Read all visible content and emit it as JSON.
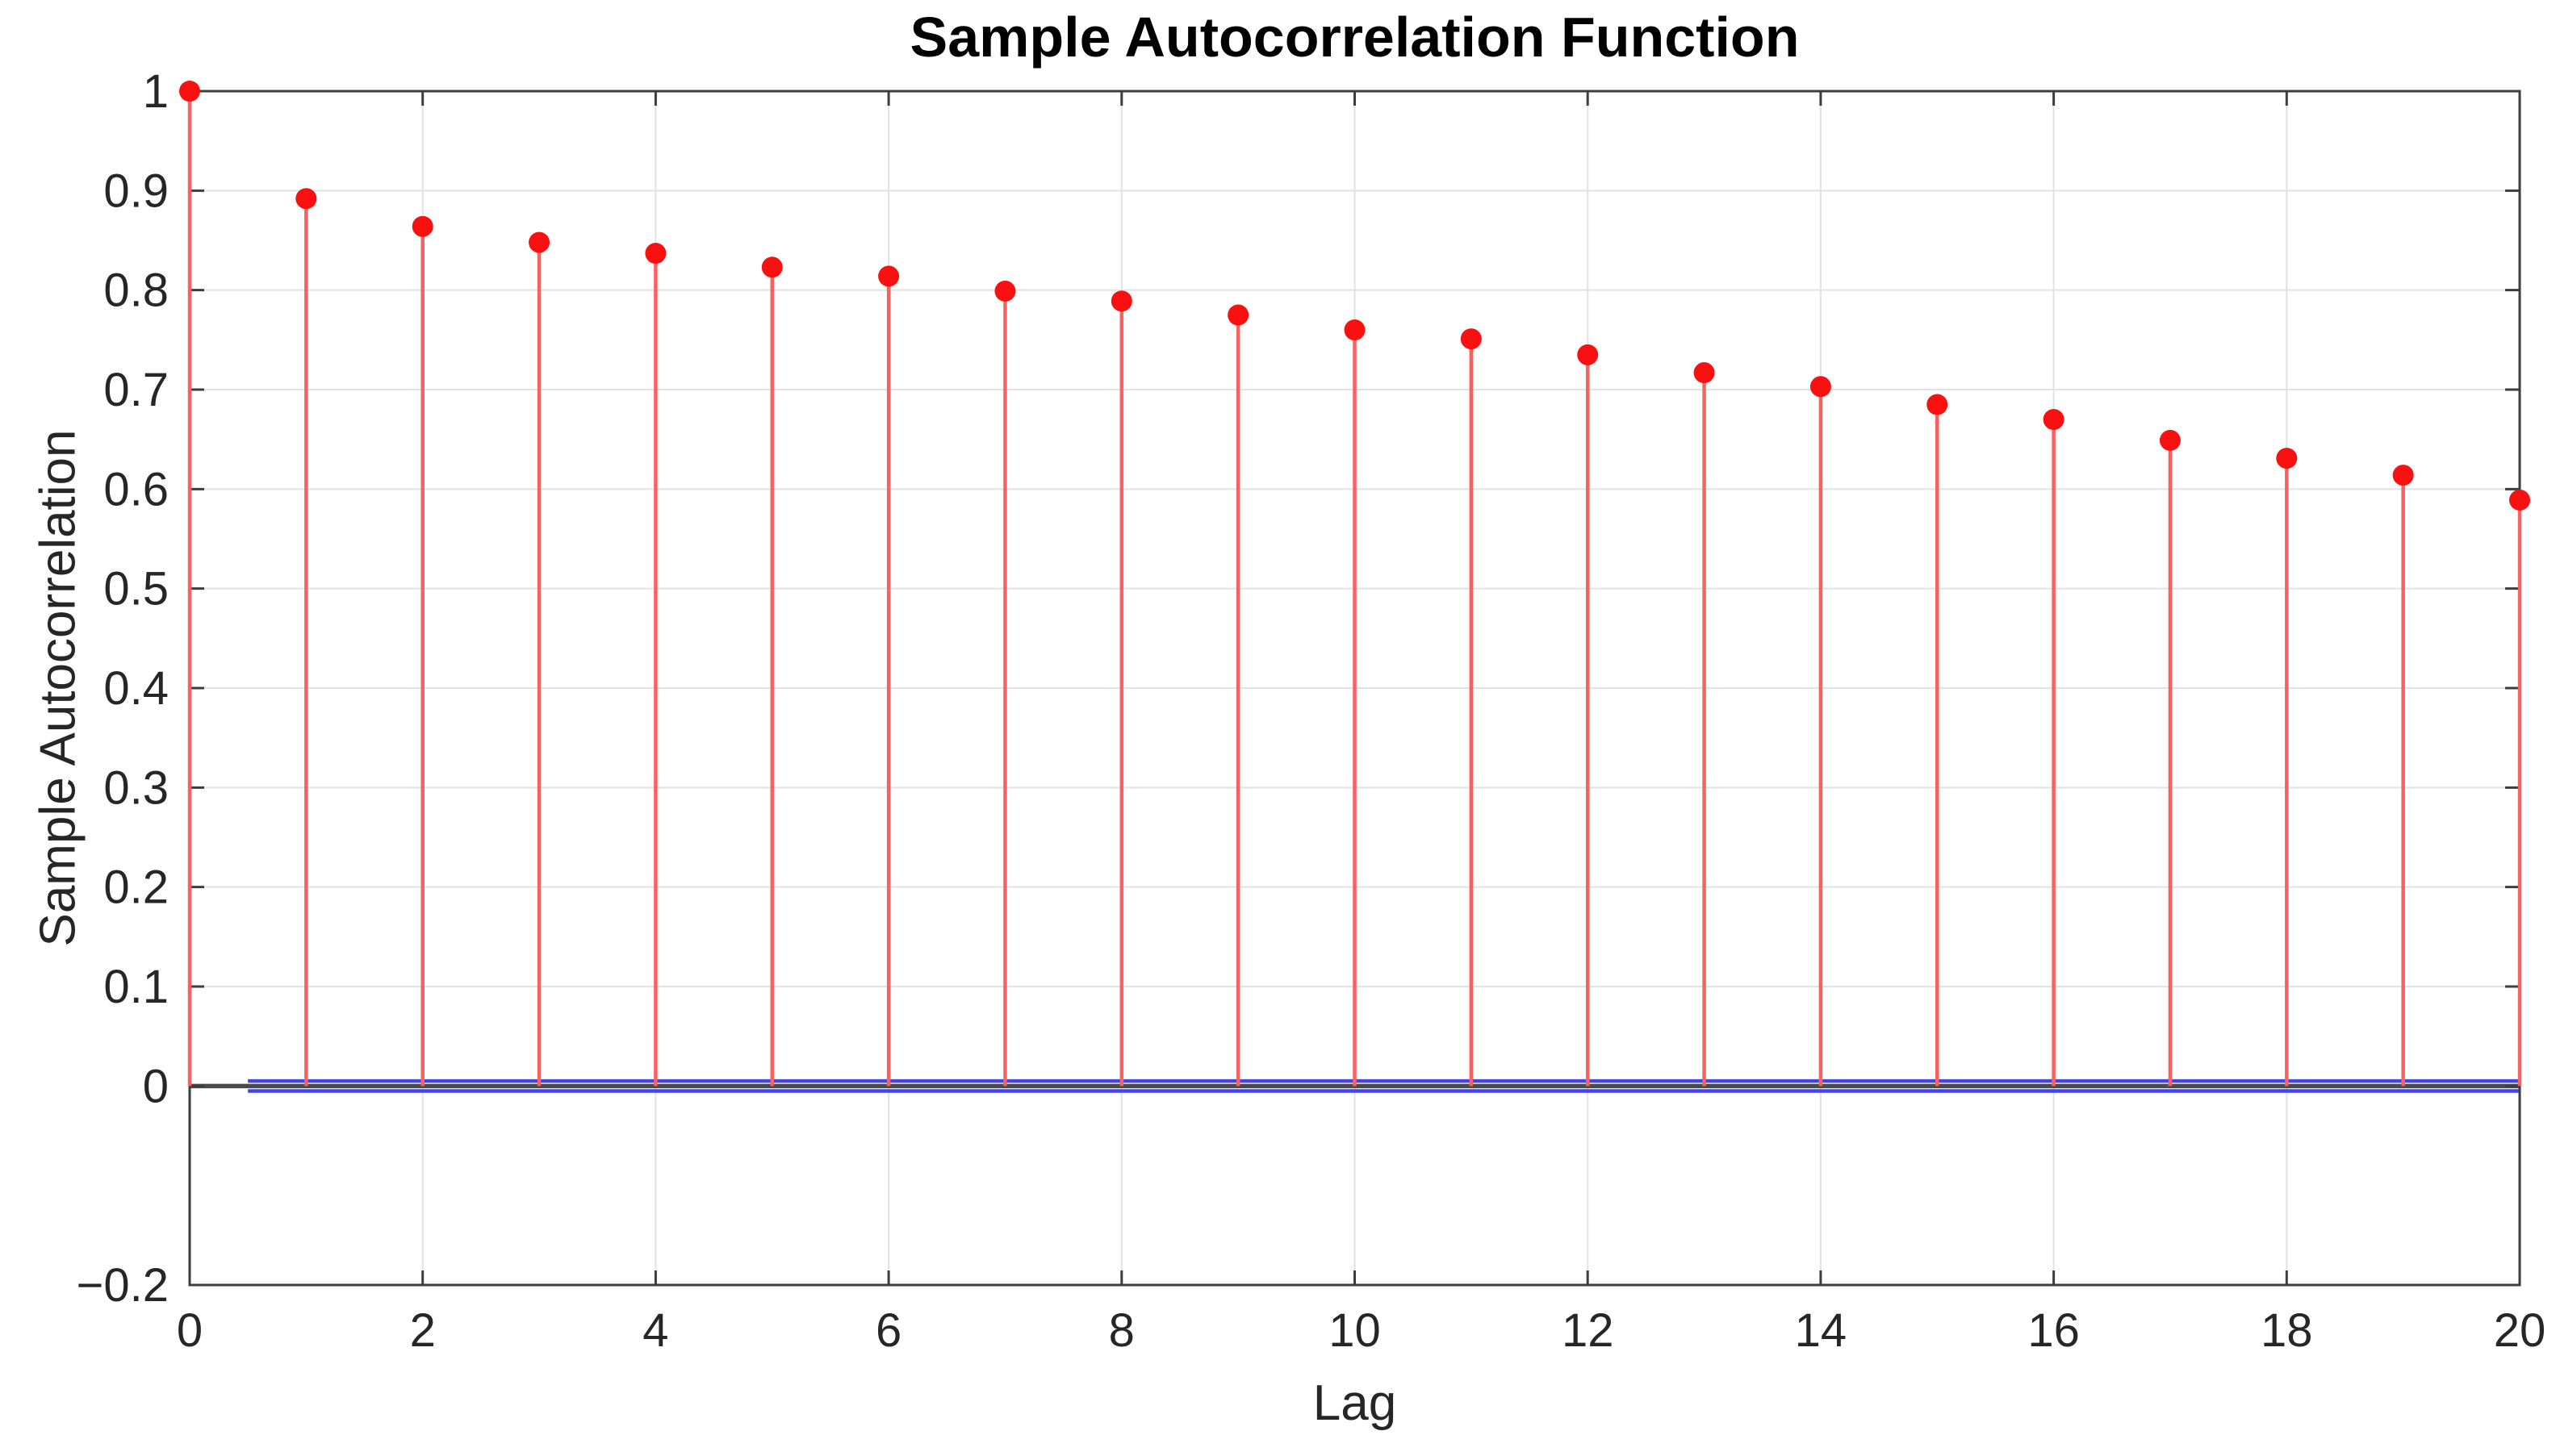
{
  "chart_data": {
    "type": "stem",
    "title": "Sample Autocorrelation Function",
    "xlabel": "Lag",
    "ylabel": "Sample Autocorrelation",
    "x": [
      0,
      1,
      2,
      3,
      4,
      5,
      6,
      7,
      8,
      9,
      10,
      11,
      12,
      13,
      14,
      15,
      16,
      17,
      18,
      19,
      20
    ],
    "values": [
      1.0,
      0.892,
      0.864,
      0.848,
      0.837,
      0.823,
      0.814,
      0.799,
      0.789,
      0.775,
      0.76,
      0.751,
      0.735,
      0.717,
      0.703,
      0.685,
      0.67,
      0.649,
      0.631,
      0.614,
      0.589
    ],
    "confidence_bounds": {
      "upper": 0.005,
      "lower": -0.005,
      "x_start": 0.5,
      "x_end": 20
    },
    "baseline_value": 0,
    "xlim": [
      0,
      20
    ],
    "ylim": [
      -0.2,
      1
    ],
    "xticks": [
      {
        "label": "0",
        "value": 0
      },
      {
        "label": "2",
        "value": 2
      },
      {
        "label": "4",
        "value": 4
      },
      {
        "label": "6",
        "value": 6
      },
      {
        "label": "8",
        "value": 8
      },
      {
        "label": "10",
        "value": 10
      },
      {
        "label": "12",
        "value": 12
      },
      {
        "label": "14",
        "value": 14
      },
      {
        "label": "16",
        "value": 16
      },
      {
        "label": "18",
        "value": 18
      },
      {
        "label": "20",
        "value": 20
      }
    ],
    "yticks": [
      {
        "label": "1",
        "value": 1
      },
      {
        "label": "0.9",
        "value": 0.9
      },
      {
        "label": "0.8",
        "value": 0.8
      },
      {
        "label": "0.7",
        "value": 0.7
      },
      {
        "label": "0.6",
        "value": 0.6
      },
      {
        "label": "0.5",
        "value": 0.5
      },
      {
        "label": "0.4",
        "value": 0.4
      },
      {
        "label": "0.3",
        "value": 0.3
      },
      {
        "label": "0.2",
        "value": 0.2
      },
      {
        "label": "0.1",
        "value": 0.1
      },
      {
        "label": "0",
        "value": 0
      },
      {
        "label": "−0.2",
        "value": -0.2
      }
    ],
    "grid": true,
    "legend": null,
    "colors": {
      "marker": "#f91111",
      "stem": "#f96060",
      "confidence": "#4444e0",
      "baseline": "#4a4a4a",
      "frame": "#3d3d3d",
      "grid": "#e2e2e2",
      "tick_text": "#262626",
      "title_text": "#000000"
    }
  }
}
